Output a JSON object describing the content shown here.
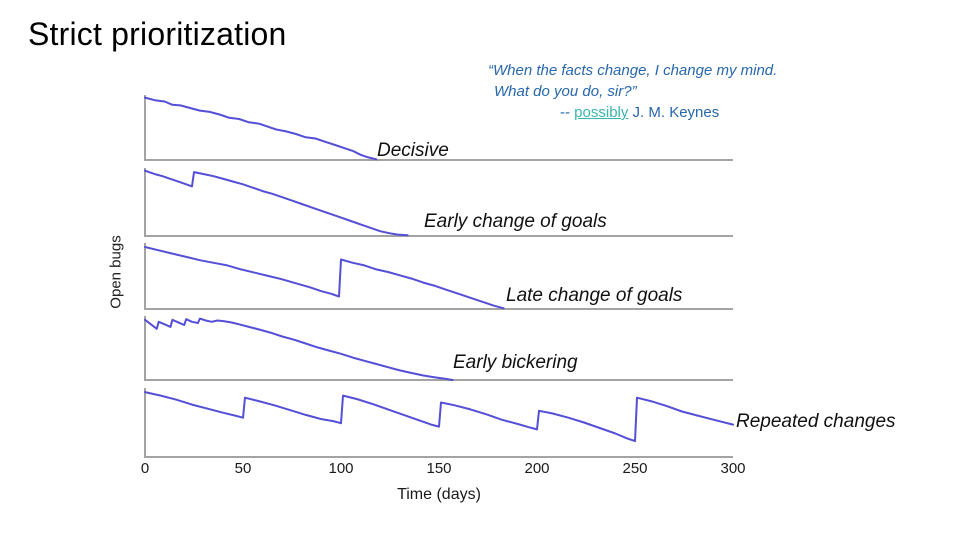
{
  "slide": {
    "title": "Strict prioritization"
  },
  "quote": {
    "line1": "“When the facts change, I change my mind.",
    "line2": "What do you do, sir?”",
    "attribution_prefix": "-- ",
    "attribution_link": "possibly",
    "attribution_suffix": " J. M. Keynes",
    "text_color": "#2767ab",
    "link_color": "#3ab7b1"
  },
  "chart_data": {
    "type": "line",
    "title": "",
    "xlabel": "Time (days)",
    "ylabel": "Open bugs",
    "xlim": [
      0,
      300
    ],
    "x_ticks": [
      "0",
      "50",
      "100",
      "150",
      "200",
      "250",
      "300"
    ],
    "grid": false,
    "legend_position": "none",
    "line_color": "#544fd6",
    "axis_color": "#a3a3a3",
    "panels": [
      {
        "label": "Decisive",
        "points": [
          [
            0,
            0.96
          ],
          [
            5,
            0.92
          ],
          [
            10,
            0.9
          ],
          [
            14,
            0.85
          ],
          [
            18,
            0.84
          ],
          [
            23,
            0.8
          ],
          [
            28,
            0.76
          ],
          [
            33,
            0.74
          ],
          [
            38,
            0.7
          ],
          [
            43,
            0.65
          ],
          [
            48,
            0.63
          ],
          [
            53,
            0.58
          ],
          [
            58,
            0.56
          ],
          [
            62,
            0.52
          ],
          [
            67,
            0.47
          ],
          [
            72,
            0.44
          ],
          [
            77,
            0.4
          ],
          [
            82,
            0.35
          ],
          [
            87,
            0.33
          ],
          [
            92,
            0.28
          ],
          [
            97,
            0.23
          ],
          [
            102,
            0.18
          ],
          [
            106,
            0.14
          ],
          [
            110,
            0.08
          ],
          [
            114,
            0.04
          ],
          [
            118,
            0.01
          ]
        ]
      },
      {
        "label": "Early change of goals",
        "points": [
          [
            0,
            0.96
          ],
          [
            5,
            0.91
          ],
          [
            9,
            0.88
          ],
          [
            13,
            0.84
          ],
          [
            17,
            0.8
          ],
          [
            21,
            0.76
          ],
          [
            24,
            0.73
          ],
          [
            25,
            0.94
          ],
          [
            30,
            0.91
          ],
          [
            35,
            0.88
          ],
          [
            40,
            0.84
          ],
          [
            45,
            0.8
          ],
          [
            50,
            0.76
          ],
          [
            55,
            0.71
          ],
          [
            60,
            0.66
          ],
          [
            65,
            0.62
          ],
          [
            70,
            0.57
          ],
          [
            75,
            0.52
          ],
          [
            80,
            0.47
          ],
          [
            85,
            0.42
          ],
          [
            90,
            0.37
          ],
          [
            95,
            0.32
          ],
          [
            100,
            0.27
          ],
          [
            105,
            0.22
          ],
          [
            110,
            0.17
          ],
          [
            115,
            0.12
          ],
          [
            120,
            0.07
          ],
          [
            125,
            0.04
          ],
          [
            129,
            0.02
          ],
          [
            134,
            0.01
          ]
        ]
      },
      {
        "label": "Late change of goals",
        "points": [
          [
            0,
            0.94
          ],
          [
            7,
            0.89
          ],
          [
            14,
            0.84
          ],
          [
            21,
            0.79
          ],
          [
            28,
            0.74
          ],
          [
            35,
            0.7
          ],
          [
            42,
            0.66
          ],
          [
            49,
            0.6
          ],
          [
            56,
            0.55
          ],
          [
            63,
            0.5
          ],
          [
            70,
            0.45
          ],
          [
            77,
            0.39
          ],
          [
            84,
            0.33
          ],
          [
            90,
            0.27
          ],
          [
            95,
            0.23
          ],
          [
            99,
            0.19
          ],
          [
            100,
            0.75
          ],
          [
            106,
            0.7
          ],
          [
            112,
            0.66
          ],
          [
            118,
            0.6
          ],
          [
            124,
            0.56
          ],
          [
            130,
            0.51
          ],
          [
            136,
            0.46
          ],
          [
            142,
            0.4
          ],
          [
            148,
            0.35
          ],
          [
            154,
            0.29
          ],
          [
            160,
            0.23
          ],
          [
            166,
            0.17
          ],
          [
            172,
            0.11
          ],
          [
            178,
            0.05
          ],
          [
            183,
            0.01
          ]
        ]
      },
      {
        "label": "Early bickering",
        "points": [
          [
            0,
            0.94
          ],
          [
            3,
            0.87
          ],
          [
            6,
            0.8
          ],
          [
            7,
            0.91
          ],
          [
            10,
            0.87
          ],
          [
            13,
            0.83
          ],
          [
            14,
            0.94
          ],
          [
            17,
            0.9
          ],
          [
            20,
            0.86
          ],
          [
            21,
            0.95
          ],
          [
            24,
            0.91
          ],
          [
            27,
            0.89
          ],
          [
            28,
            0.96
          ],
          [
            31,
            0.93
          ],
          [
            34,
            0.91
          ],
          [
            37,
            0.93
          ],
          [
            40,
            0.92
          ],
          [
            44,
            0.9
          ],
          [
            48,
            0.87
          ],
          [
            53,
            0.83
          ],
          [
            58,
            0.79
          ],
          [
            64,
            0.74
          ],
          [
            70,
            0.68
          ],
          [
            76,
            0.63
          ],
          [
            82,
            0.57
          ],
          [
            88,
            0.51
          ],
          [
            94,
            0.46
          ],
          [
            100,
            0.41
          ],
          [
            106,
            0.35
          ],
          [
            112,
            0.3
          ],
          [
            118,
            0.25
          ],
          [
            124,
            0.2
          ],
          [
            130,
            0.15
          ],
          [
            136,
            0.11
          ],
          [
            142,
            0.07
          ],
          [
            148,
            0.04
          ],
          [
            153,
            0.02
          ],
          [
            157,
            0.0
          ]
        ]
      },
      {
        "label": "Repeated changes",
        "points": [
          [
            0,
            0.94
          ],
          [
            8,
            0.89
          ],
          [
            16,
            0.83
          ],
          [
            24,
            0.76
          ],
          [
            32,
            0.7
          ],
          [
            40,
            0.64
          ],
          [
            46,
            0.6
          ],
          [
            50,
            0.57
          ],
          [
            51,
            0.86
          ],
          [
            58,
            0.81
          ],
          [
            66,
            0.75
          ],
          [
            74,
            0.68
          ],
          [
            82,
            0.61
          ],
          [
            90,
            0.55
          ],
          [
            96,
            0.52
          ],
          [
            100,
            0.49
          ],
          [
            101,
            0.89
          ],
          [
            108,
            0.84
          ],
          [
            116,
            0.77
          ],
          [
            124,
            0.69
          ],
          [
            132,
            0.61
          ],
          [
            140,
            0.53
          ],
          [
            146,
            0.47
          ],
          [
            150,
            0.44
          ],
          [
            151,
            0.79
          ],
          [
            158,
            0.75
          ],
          [
            166,
            0.69
          ],
          [
            174,
            0.62
          ],
          [
            182,
            0.54
          ],
          [
            190,
            0.48
          ],
          [
            196,
            0.43
          ],
          [
            200,
            0.4
          ],
          [
            201,
            0.67
          ],
          [
            208,
            0.63
          ],
          [
            216,
            0.57
          ],
          [
            224,
            0.5
          ],
          [
            232,
            0.42
          ],
          [
            240,
            0.34
          ],
          [
            246,
            0.27
          ],
          [
            250,
            0.23
          ],
          [
            251,
            0.86
          ],
          [
            258,
            0.81
          ],
          [
            266,
            0.74
          ],
          [
            274,
            0.66
          ],
          [
            282,
            0.6
          ],
          [
            290,
            0.54
          ],
          [
            300,
            0.47
          ]
        ]
      }
    ]
  }
}
